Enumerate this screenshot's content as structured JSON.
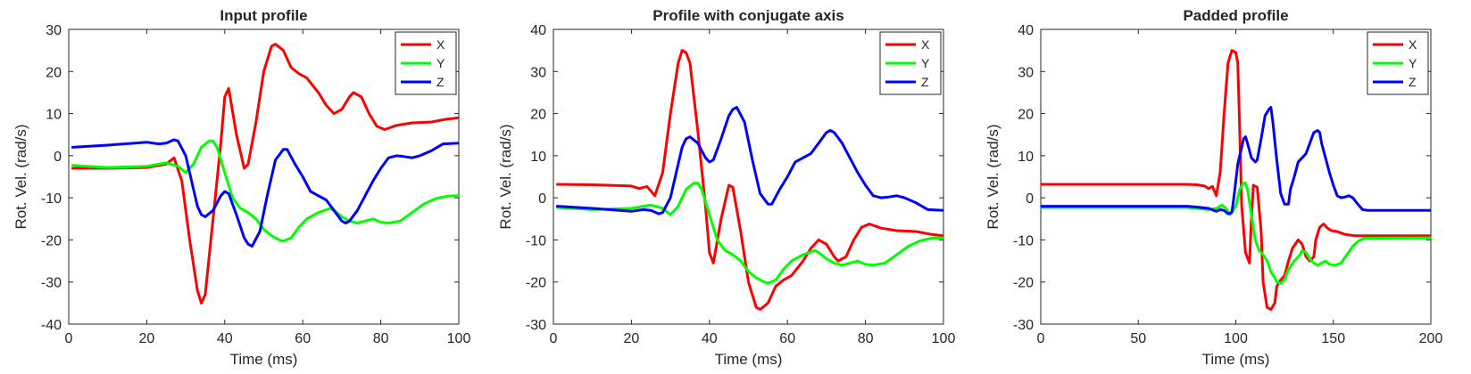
{
  "figure": {
    "colors": {
      "X": "#ff0000",
      "Y": "#00ff00",
      "Z": "#0000ff",
      "axes": "#262626",
      "background": "#ffffff"
    }
  },
  "chart_data": [
    {
      "type": "line",
      "title": "Input profile",
      "xlabel": "Time (ms)",
      "ylabel": "Rot. Vel. (rad/s)",
      "xlim": [
        0,
        100
      ],
      "ylim": [
        -40,
        30
      ],
      "xticks": [
        0,
        20,
        40,
        60,
        80,
        100
      ],
      "yticks": [
        -40,
        -30,
        -20,
        -10,
        0,
        10,
        20,
        30
      ],
      "legend_position": "top-right",
      "grid": false,
      "series": [
        {
          "name": "X",
          "color": "#ff0000",
          "x": [
            1,
            10,
            20,
            25,
            27,
            29,
            31,
            33,
            34,
            35,
            37,
            39,
            40,
            41,
            43,
            45,
            46,
            48,
            50,
            52,
            53,
            55,
            57,
            59,
            61,
            64,
            66,
            68,
            70,
            72,
            73,
            75,
            77,
            79,
            81,
            84,
            88,
            93,
            97,
            100
          ],
          "y": [
            -3,
            -3,
            -2.8,
            -2,
            -0.5,
            -6,
            -20,
            -32,
            -35,
            -33,
            -15,
            3,
            14,
            16,
            5,
            -3,
            -2,
            8,
            20,
            26,
            26.5,
            25,
            21,
            19.5,
            18.5,
            15,
            12,
            10,
            11,
            14,
            15,
            14,
            10,
            7,
            6.2,
            7.2,
            7.8,
            8,
            8.7,
            9
          ]
        },
        {
          "name": "Y",
          "color": "#00ff00",
          "x": [
            1,
            10,
            20,
            25,
            28,
            30,
            32,
            34,
            36,
            37,
            38,
            40,
            42,
            44,
            46,
            48,
            50,
            52,
            54,
            55,
            57,
            59,
            61,
            64,
            67,
            68,
            70,
            72,
            74,
            76,
            78,
            80,
            82,
            85,
            88,
            91,
            94,
            97,
            100
          ],
          "y": [
            -2.3,
            -2.8,
            -2.5,
            -1.7,
            -2.5,
            -4,
            -2,
            2,
            3.5,
            3.5,
            2,
            -4,
            -10,
            -12.5,
            -13.5,
            -15,
            -17.5,
            -19,
            -20,
            -20.3,
            -19.5,
            -17,
            -15,
            -13.5,
            -12.5,
            -13,
            -14.5,
            -15.5,
            -16,
            -15.5,
            -15,
            -15.8,
            -16,
            -15.5,
            -13.5,
            -11.5,
            -10.2,
            -9.6,
            -9.5
          ]
        },
        {
          "name": "Z",
          "color": "#0000ff",
          "x": [
            1,
            10,
            20,
            23,
            25,
            27,
            28,
            30,
            32,
            33,
            34,
            35,
            37,
            39,
            40,
            41,
            43,
            45,
            46,
            47,
            49,
            51,
            53,
            55,
            56,
            58,
            60,
            62,
            64,
            66,
            68,
            70,
            71,
            72,
            74,
            76,
            78,
            80,
            82,
            84,
            86,
            88,
            90,
            93,
            96,
            100
          ],
          "y": [
            2,
            2.5,
            3.2,
            2.8,
            3,
            3.8,
            3.5,
            0,
            -8,
            -12,
            -14,
            -14.5,
            -13,
            -9.5,
            -8.5,
            -9,
            -14,
            -19.5,
            -21,
            -21.5,
            -18,
            -9,
            -1,
            1.5,
            1.5,
            -2,
            -5,
            -8.5,
            -9.5,
            -10.5,
            -13,
            -15.5,
            -16,
            -15.5,
            -13,
            -9.5,
            -6,
            -3,
            -0.5,
            0,
            -0.2,
            -0.5,
            0,
            1.2,
            2.8,
            3
          ]
        }
      ]
    },
    {
      "type": "line",
      "title": "Profile with conjugate axis",
      "xlabel": "Time (ms)",
      "ylabel": "Rot. Vel. (rad/s)",
      "xlim": [
        0,
        100
      ],
      "ylim": [
        -30,
        40
      ],
      "xticks": [
        0,
        20,
        40,
        60,
        80,
        100
      ],
      "yticks": [
        -30,
        -20,
        -10,
        0,
        10,
        20,
        30,
        40
      ],
      "legend_position": "top-right",
      "grid": false,
      "series": [
        {
          "name": "X",
          "color": "#ff0000",
          "x": [
            1,
            10,
            20,
            22,
            24,
            26,
            28,
            30,
            32,
            33,
            34,
            35,
            37,
            39,
            40,
            41,
            43,
            45,
            46,
            48,
            50,
            52,
            53,
            55,
            57,
            59,
            61,
            64,
            66,
            68,
            70,
            72,
            73,
            75,
            77,
            79,
            81,
            84,
            88,
            93,
            97,
            100
          ],
          "y": [
            3.2,
            3.1,
            2.8,
            2.2,
            2.7,
            0.5,
            6,
            20,
            32,
            35,
            34.5,
            32,
            16,
            -2,
            -13,
            -15.5,
            -5,
            3,
            2.5,
            -8,
            -20,
            -26,
            -26.5,
            -25,
            -21,
            -19.5,
            -18.5,
            -15,
            -12,
            -10,
            -11,
            -14,
            -15,
            -14,
            -10,
            -7,
            -6.2,
            -7.2,
            -7.8,
            -8,
            -8.7,
            -9
          ]
        },
        {
          "name": "Y",
          "color": "#00ff00",
          "x": [
            1,
            10,
            20,
            25,
            28,
            30,
            32,
            34,
            36,
            37,
            38,
            40,
            42,
            44,
            46,
            48,
            50,
            52,
            54,
            55,
            57,
            59,
            61,
            64,
            67,
            68,
            70,
            72,
            74,
            76,
            78,
            80,
            82,
            85,
            88,
            91,
            94,
            97,
            100
          ],
          "y": [
            -2.3,
            -2.8,
            -2.5,
            -1.7,
            -2.5,
            -4,
            -2,
            2,
            3.5,
            3.5,
            2,
            -4,
            -10,
            -12.5,
            -13.5,
            -15,
            -17.5,
            -19,
            -20,
            -20.3,
            -19.5,
            -17,
            -15,
            -13.5,
            -12.5,
            -13,
            -14.5,
            -15.5,
            -16,
            -15.5,
            -15,
            -15.8,
            -16,
            -15.5,
            -13.5,
            -11.5,
            -10.2,
            -9.6,
            -9.5
          ]
        },
        {
          "name": "Z",
          "color": "#0000ff",
          "x": [
            1,
            10,
            20,
            23,
            25,
            27,
            28,
            30,
            32,
            33,
            34,
            35,
            37,
            39,
            40,
            41,
            43,
            45,
            46,
            47,
            49,
            51,
            53,
            55,
            56,
            58,
            60,
            62,
            64,
            66,
            68,
            70,
            71,
            72,
            74,
            76,
            78,
            80,
            82,
            84,
            86,
            88,
            90,
            93,
            96,
            100
          ],
          "y": [
            -2,
            -2.5,
            -3.2,
            -2.8,
            -3,
            -3.8,
            -3.5,
            0,
            8,
            12,
            14,
            14.5,
            13,
            9.5,
            8.5,
            9,
            14,
            19.5,
            21,
            21.5,
            18,
            9,
            1,
            -1.5,
            -1.5,
            2,
            5,
            8.5,
            9.5,
            10.5,
            13,
            15.5,
            16,
            15.5,
            13,
            9.5,
            6,
            3,
            0.5,
            0,
            0.2,
            0.5,
            0,
            -1.2,
            -2.8,
            -3
          ]
        }
      ]
    },
    {
      "type": "line",
      "title": "Padded profile",
      "xlabel": "Time (ms)",
      "ylabel": "Rot. Vel. (rad/s)",
      "xlim": [
        0,
        200
      ],
      "ylim": [
        -30,
        40
      ],
      "xticks": [
        0,
        50,
        100,
        150,
        200
      ],
      "yticks": [
        -30,
        -20,
        -10,
        0,
        10,
        20,
        30,
        40
      ],
      "legend_position": "top-right",
      "grid": false,
      "series": [
        {
          "name": "X",
          "color": "#ff0000",
          "x": [
            0,
            65,
            75,
            80,
            84,
            86,
            88,
            90,
            92,
            94,
            96,
            98,
            100,
            101,
            102,
            103,
            105,
            107,
            108,
            109,
            111,
            113,
            114,
            116,
            118,
            120,
            121,
            123,
            125,
            127,
            129,
            132,
            134,
            136,
            138,
            140,
            141,
            143,
            145,
            147,
            149,
            152,
            156,
            161,
            165,
            200
          ],
          "y": [
            3.2,
            3.2,
            3.2,
            3.1,
            2.8,
            2.2,
            2.7,
            0.5,
            6,
            20,
            32,
            35,
            34.5,
            32,
            16,
            -2,
            -13,
            -15.5,
            -5,
            3,
            2.5,
            -8,
            -20,
            -26,
            -26.5,
            -25,
            -21,
            -19.5,
            -18.5,
            -15,
            -12,
            -10,
            -11,
            -14,
            -15,
            -14,
            -10,
            -7,
            -6.2,
            -7.2,
            -7.8,
            -8,
            -8.7,
            -9,
            -9,
            -9
          ]
        },
        {
          "name": "Y",
          "color": "#00ff00",
          "x": [
            0,
            65,
            75,
            80,
            86,
            90,
            93,
            95,
            97,
            100,
            102,
            104,
            105,
            106,
            108,
            110,
            112,
            114,
            116,
            118,
            120,
            121,
            123,
            125,
            127,
            130,
            133,
            134,
            136,
            138,
            140,
            142,
            144,
            146,
            148,
            151,
            154,
            157,
            160,
            163,
            166,
            200
          ],
          "y": [
            -2.3,
            -2.3,
            -2.3,
            -2.5,
            -2.8,
            -2.5,
            -1.7,
            -2.5,
            -4,
            -2,
            2,
            3.5,
            3.5,
            2,
            -4,
            -10,
            -12.5,
            -13.5,
            -15,
            -17.5,
            -19,
            -20,
            -20.3,
            -19.5,
            -17,
            -15,
            -13.5,
            -12.5,
            -13,
            -14.5,
            -15.5,
            -16,
            -15.5,
            -15,
            -15.8,
            -16,
            -15.5,
            -13.5,
            -11.5,
            -10.2,
            -9.6,
            -9.5
          ]
        },
        {
          "name": "Z",
          "color": "#0000ff",
          "x": [
            0,
            65,
            75,
            80,
            86,
            90,
            92,
            94,
            96,
            98,
            99,
            101,
            103,
            104,
            105,
            106,
            108,
            110,
            111,
            113,
            115,
            117,
            118,
            119,
            121,
            123,
            125,
            127,
            128,
            130,
            132,
            134,
            136,
            138,
            140,
            142,
            143,
            144,
            146,
            148,
            150,
            152,
            154,
            156,
            158,
            160,
            162,
            165,
            168,
            200
          ],
          "y": [
            -2,
            -2,
            -2,
            -2.2,
            -2.5,
            -3.2,
            -2.8,
            -3,
            -3.8,
            -3.5,
            0,
            8,
            12,
            14,
            14.5,
            13,
            9.5,
            8.5,
            9,
            14,
            19.5,
            21,
            21.5,
            18,
            9,
            1,
            -1.5,
            -1.5,
            2,
            5,
            8.5,
            9.5,
            10.5,
            13,
            15.5,
            16,
            15.5,
            13,
            9.5,
            6,
            3,
            0.5,
            0,
            0.2,
            0.5,
            0,
            -1.2,
            -2.8,
            -3,
            -3
          ]
        }
      ]
    }
  ]
}
